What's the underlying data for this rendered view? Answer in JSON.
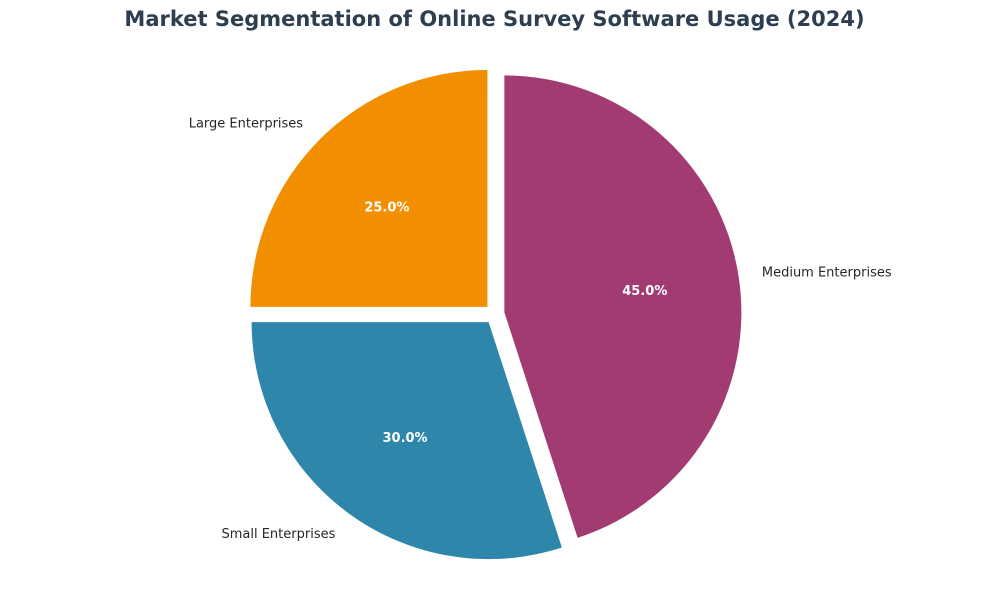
{
  "chart_data": {
    "type": "pie",
    "title": "Market Segmentation of Online Survey Software Usage (2024)",
    "categories": [
      "Large Enterprises",
      "Small Enterprises",
      "Medium Enterprises"
    ],
    "values": [
      25.0,
      30.0,
      45.0
    ],
    "value_labels": [
      "25.0%",
      "30.0%",
      "45.0%"
    ],
    "colors": [
      "#f18f01",
      "#2e86ab",
      "#a23b72"
    ],
    "start_angle_degrees": 90,
    "direction": "counterclockwise",
    "exploded": true,
    "legend": "none"
  },
  "style": {
    "title_color": "#2c3e50",
    "background": "#ffffff"
  }
}
